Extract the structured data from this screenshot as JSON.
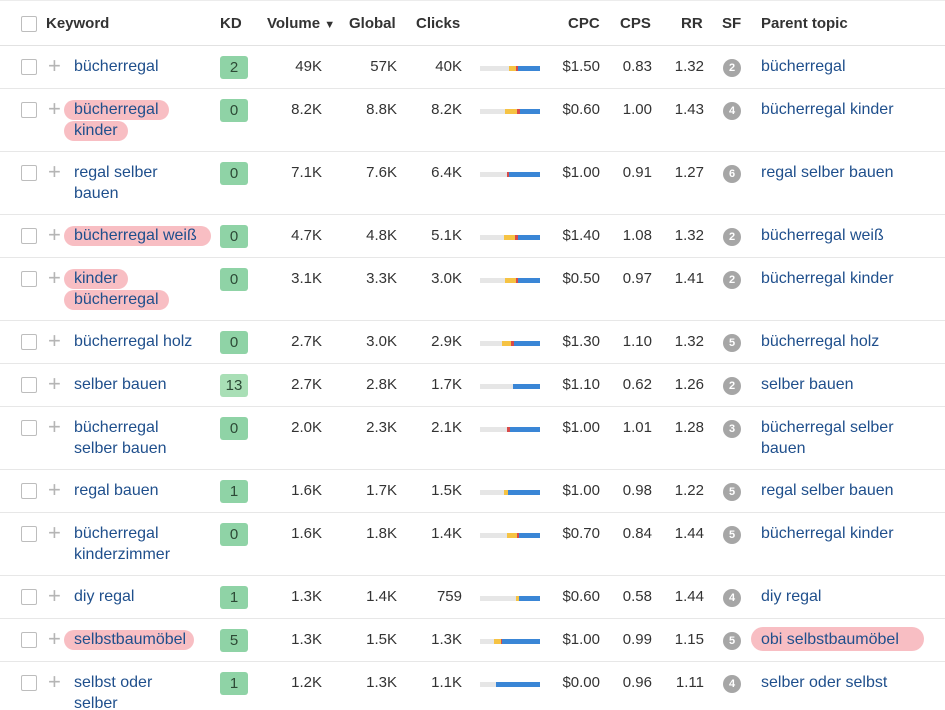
{
  "header": {
    "keyword": "Keyword",
    "kd": "KD",
    "volume": "Volume",
    "volume_sort_icon": "▼",
    "global": "Global",
    "clicks": "Clicks",
    "cpc": "CPC",
    "cps": "CPS",
    "rr": "RR",
    "sf": "SF",
    "parent_topic": "Parent topic"
  },
  "colors": {
    "link": "#1f4f8c",
    "kd_low": "#8fd3a6",
    "kd_mid": "#a9dfb6",
    "bar_blue": "#3a86d6",
    "bar_yellow": "#f6c343",
    "bar_red": "#d84a4a",
    "bar_gray": "#e6e6e6",
    "highlight": "#f7b3b8"
  },
  "rows": [
    {
      "keyword_lines": [
        "bücherregal"
      ],
      "kd": "2",
      "volume": "49K",
      "global": "57K",
      "clicks": "40K",
      "cpc": "$1.50",
      "cps": "0.83",
      "rr": "1.32",
      "sf": "2",
      "parent_lines": [
        "bücherregal"
      ],
      "bar": {
        "gray": 0.48,
        "yellow": 0.12,
        "red": 0.03,
        "blue": 0.37
      },
      "highlight": false,
      "parent_highlight": false
    },
    {
      "keyword_lines": [
        "bücherregal",
        "kinder"
      ],
      "kd": "0",
      "volume": "8.2K",
      "global": "8.8K",
      "clicks": "8.2K",
      "cpc": "$0.60",
      "cps": "1.00",
      "rr": "1.43",
      "sf": "4",
      "parent_lines": [
        "bücherregal kinder"
      ],
      "bar": {
        "gray": 0.42,
        "yellow": 0.2,
        "red": 0.04,
        "blue": 0.34
      },
      "highlight": true,
      "parent_highlight": false
    },
    {
      "keyword_lines": [
        "regal selber",
        "bauen"
      ],
      "kd": "0",
      "volume": "7.1K",
      "global": "7.6K",
      "clicks": "6.4K",
      "cpc": "$1.00",
      "cps": "0.91",
      "rr": "1.27",
      "sf": "6",
      "parent_lines": [
        "regal selber bauen"
      ],
      "bar": {
        "gray": 0.45,
        "yellow": 0.0,
        "red": 0.04,
        "blue": 0.51
      },
      "highlight": false,
      "parent_highlight": false
    },
    {
      "keyword_lines": [
        "bücherregal weiß"
      ],
      "kd": "0",
      "volume": "4.7K",
      "global": "4.8K",
      "clicks": "5.1K",
      "cpc": "$1.40",
      "cps": "1.08",
      "rr": "1.32",
      "sf": "2",
      "parent_lines": [
        "bücherregal weiß"
      ],
      "bar": {
        "gray": 0.4,
        "yellow": 0.18,
        "red": 0.05,
        "blue": 0.37
      },
      "highlight": true,
      "parent_highlight": false
    },
    {
      "keyword_lines": [
        "kinder",
        "bücherregal"
      ],
      "kd": "0",
      "volume": "3.1K",
      "global": "3.3K",
      "clicks": "3.0K",
      "cpc": "$0.50",
      "cps": "0.97",
      "rr": "1.41",
      "sf": "2",
      "parent_lines": [
        "bücherregal kinder"
      ],
      "bar": {
        "gray": 0.42,
        "yellow": 0.18,
        "red": 0.04,
        "blue": 0.36
      },
      "highlight": true,
      "parent_highlight": false
    },
    {
      "keyword_lines": [
        "bücherregal holz"
      ],
      "kd": "0",
      "volume": "2.7K",
      "global": "3.0K",
      "clicks": "2.9K",
      "cpc": "$1.30",
      "cps": "1.10",
      "rr": "1.32",
      "sf": "5",
      "parent_lines": [
        "bücherregal holz"
      ],
      "bar": {
        "gray": 0.36,
        "yellow": 0.16,
        "red": 0.05,
        "blue": 0.43
      },
      "highlight": false,
      "parent_highlight": false
    },
    {
      "keyword_lines": [
        "selber bauen"
      ],
      "kd": "13",
      "volume": "2.7K",
      "global": "2.8K",
      "clicks": "1.7K",
      "cpc": "$1.10",
      "cps": "0.62",
      "rr": "1.26",
      "sf": "2",
      "parent_lines": [
        "selber bauen"
      ],
      "bar": {
        "gray": 0.55,
        "yellow": 0.0,
        "red": 0.0,
        "blue": 0.45
      },
      "highlight": false,
      "parent_highlight": false
    },
    {
      "keyword_lines": [
        "bücherregal",
        "selber bauen"
      ],
      "kd": "0",
      "volume": "2.0K",
      "global": "2.3K",
      "clicks": "2.1K",
      "cpc": "$1.00",
      "cps": "1.01",
      "rr": "1.28",
      "sf": "3",
      "parent_lines": [
        "bücherregal selber",
        "bauen"
      ],
      "bar": {
        "gray": 0.45,
        "yellow": 0.0,
        "red": 0.05,
        "blue": 0.5
      },
      "highlight": false,
      "parent_highlight": false
    },
    {
      "keyword_lines": [
        "regal bauen"
      ],
      "kd": "1",
      "volume": "1.6K",
      "global": "1.7K",
      "clicks": "1.5K",
      "cpc": "$1.00",
      "cps": "0.98",
      "rr": "1.22",
      "sf": "5",
      "parent_lines": [
        "regal selber bauen"
      ],
      "bar": {
        "gray": 0.4,
        "yellow": 0.06,
        "red": 0.0,
        "blue": 0.54
      },
      "highlight": false,
      "parent_highlight": false
    },
    {
      "keyword_lines": [
        "bücherregal",
        "kinderzimmer"
      ],
      "kd": "0",
      "volume": "1.6K",
      "global": "1.8K",
      "clicks": "1.4K",
      "cpc": "$0.70",
      "cps": "0.84",
      "rr": "1.44",
      "sf": "5",
      "parent_lines": [
        "bücherregal kinder"
      ],
      "bar": {
        "gray": 0.45,
        "yellow": 0.16,
        "red": 0.04,
        "blue": 0.35
      },
      "highlight": false,
      "parent_highlight": false
    },
    {
      "keyword_lines": [
        "diy regal"
      ],
      "kd": "1",
      "volume": "1.3K",
      "global": "1.4K",
      "clicks": "759",
      "cpc": "$0.60",
      "cps": "0.58",
      "rr": "1.44",
      "sf": "4",
      "parent_lines": [
        "diy regal"
      ],
      "bar": {
        "gray": 0.6,
        "yellow": 0.05,
        "red": 0.0,
        "blue": 0.35
      },
      "highlight": false,
      "parent_highlight": false
    },
    {
      "keyword_lines": [
        "selbstbaumöbel"
      ],
      "kd": "5",
      "volume": "1.3K",
      "global": "1.5K",
      "clicks": "1.3K",
      "cpc": "$1.00",
      "cps": "0.99",
      "rr": "1.15",
      "sf": "5",
      "parent_lines": [
        "obi selbstbaumöbel"
      ],
      "bar": {
        "gray": 0.23,
        "yellow": 0.12,
        "red": 0.02,
        "blue": 0.63
      },
      "highlight": true,
      "parent_highlight": true
    },
    {
      "keyword_lines": [
        "selbst oder",
        "selber"
      ],
      "kd": "1",
      "volume": "1.2K",
      "global": "1.3K",
      "clicks": "1.1K",
      "cpc": "$0.00",
      "cps": "0.96",
      "rr": "1.11",
      "sf": "4",
      "parent_lines": [
        "selber oder selbst"
      ],
      "bar": {
        "gray": 0.27,
        "yellow": 0.0,
        "red": 0.0,
        "blue": 0.73
      },
      "highlight": false,
      "parent_highlight": false
    }
  ]
}
